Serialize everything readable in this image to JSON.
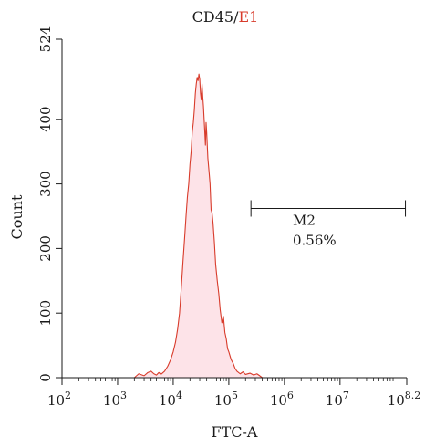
{
  "chart_data": {
    "type": "area",
    "title_parts": [
      {
        "text": "CD45/",
        "color": "#1a1a1a"
      },
      {
        "text": "E1",
        "color": "#d83b2b"
      }
    ],
    "xlabel": "FTC-A",
    "ylabel": "Count",
    "x_scale": "log",
    "xlim": [
      100,
      158489319
    ],
    "ylim": [
      0,
      524
    ],
    "x_ticks": [
      {
        "value": 100,
        "base": "10",
        "exp": "2"
      },
      {
        "value": 1000,
        "base": "10",
        "exp": "3"
      },
      {
        "value": 10000,
        "base": "10",
        "exp": "4"
      },
      {
        "value": 100000,
        "base": "10",
        "exp": "5"
      },
      {
        "value": 1000000,
        "base": "10",
        "exp": "6"
      },
      {
        "value": 10000000,
        "base": "10",
        "exp": "7"
      },
      {
        "value": 158489319,
        "base": "10",
        "exp": "8.2"
      }
    ],
    "y_ticks": [
      {
        "value": 0,
        "label": "0"
      },
      {
        "value": 100,
        "label": "100"
      },
      {
        "value": 200,
        "label": "200"
      },
      {
        "value": 300,
        "label": "300"
      },
      {
        "value": 400,
        "label": "400"
      },
      {
        "value": 524,
        "label": "524"
      }
    ],
    "series": [
      {
        "line_color": "#d83b2b",
        "fill_color": "#fde3e8",
        "x": [
          2000,
          2400,
          3000,
          3500,
          4000,
          4500,
          5000,
          5500,
          6000,
          7000,
          8000,
          9000,
          10000,
          11000,
          12000,
          13000,
          14000,
          15000,
          16000,
          17000,
          18000,
          19000,
          20000,
          21000,
          22000,
          23000,
          24000,
          25000,
          26000,
          27000,
          28000,
          29000,
          30000,
          31000,
          32000,
          33000,
          34000,
          35000,
          36000,
          37000,
          38000,
          39000,
          40000,
          42000,
          44000,
          46000,
          48000,
          50000,
          52000,
          55000,
          58000,
          62000,
          66000,
          70000,
          75000,
          80000,
          85000,
          90000,
          95000,
          100000,
          110000,
          120000,
          130000,
          140000,
          160000,
          180000,
          200000,
          240000,
          280000,
          320000,
          360000,
          400000
        ],
        "y": [
          0,
          6,
          3,
          8,
          10,
          6,
          4,
          8,
          5,
          10,
          18,
          28,
          40,
          55,
          75,
          100,
          140,
          180,
          215,
          250,
          280,
          300,
          330,
          350,
          380,
          395,
          415,
          440,
          455,
          465,
          460,
          470,
          462,
          440,
          430,
          455,
          435,
          420,
          400,
          380,
          360,
          395,
          380,
          340,
          320,
          300,
          260,
          255,
          240,
          210,
          175,
          150,
          130,
          105,
          85,
          95,
          70,
          60,
          45,
          40,
          28,
          22,
          14,
          10,
          6,
          9,
          5,
          7,
          4,
          6,
          3,
          0
        ]
      }
    ],
    "annotations": [
      {
        "label": "M2",
        "value_text": "0.56%",
        "x_start": 250000,
        "x_end": 150000000,
        "y": 262
      }
    ],
    "grid": false,
    "legend": "none"
  }
}
